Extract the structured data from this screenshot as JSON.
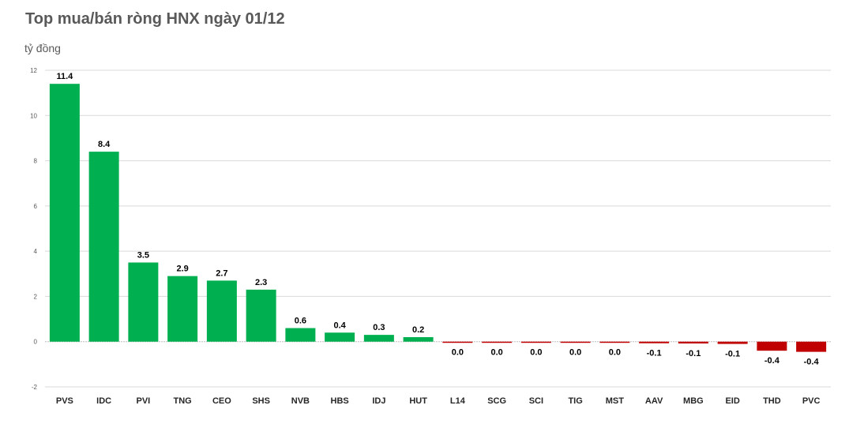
{
  "chart_data": {
    "type": "bar",
    "title": "Top mua/bán ròng HNX ngày 01/12",
    "ylabel": "tỷ đồng",
    "xlabel": "",
    "ylim": [
      -2,
      12
    ],
    "yticks": [
      -2,
      0,
      2,
      4,
      6,
      8,
      10,
      12
    ],
    "grid": true,
    "categories": [
      "PVS",
      "IDC",
      "PVI",
      "TNG",
      "CEO",
      "SHS",
      "NVB",
      "HBS",
      "IDJ",
      "HUT",
      "L14",
      "SCG",
      "SCI",
      "TIG",
      "MST",
      "AAV",
      "MBG",
      "EID",
      "THD",
      "PVC"
    ],
    "values": [
      11.4,
      8.4,
      3.5,
      2.9,
      2.7,
      2.3,
      0.6,
      0.4,
      0.3,
      0.2,
      -0.03,
      -0.03,
      -0.03,
      -0.03,
      -0.03,
      -0.07,
      -0.08,
      -0.1,
      -0.4,
      -0.45
    ],
    "labels": [
      "11.4",
      "8.4",
      "3.5",
      "2.9",
      "2.7",
      "2.3",
      "0.6",
      "0.4",
      "0.3",
      "0.2",
      "0.0",
      "0.0",
      "0.0",
      "0.0",
      "0.0",
      "-0.1",
      "-0.1",
      "-0.1",
      "-0.4",
      "-0.4"
    ],
    "colors": {
      "positive": "#00b050",
      "negative": "#c00000"
    }
  }
}
